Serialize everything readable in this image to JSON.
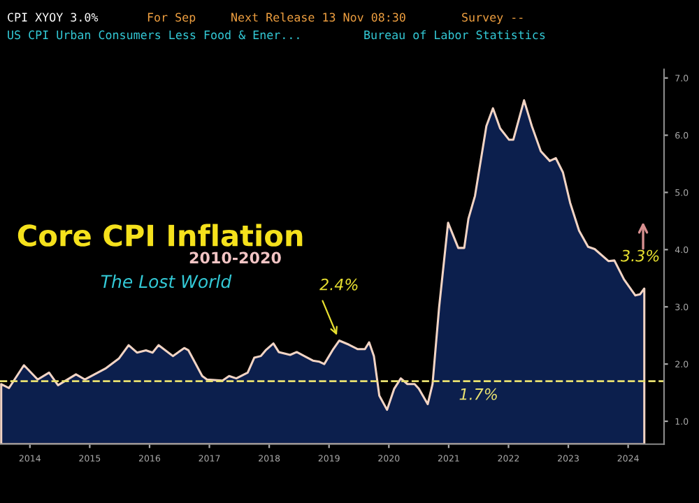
{
  "chart_data": {
    "type": "area",
    "title": "Core CPI Inflation",
    "subtitle": "The Lost World",
    "x": [
      2014.02,
      2014.15,
      2014.4,
      2014.63,
      2014.82,
      2014.97,
      2015.27,
      2015.42,
      2015.76,
      2015.99,
      2016.15,
      2016.29,
      2016.44,
      2016.55,
      2016.65,
      2016.89,
      2017.08,
      2017.15,
      2017.38,
      2017.46,
      2017.72,
      2017.83,
      2017.95,
      2018.14,
      2018.25,
      2018.36,
      2018.44,
      2018.57,
      2018.66,
      2018.85,
      2018.96,
      2019.23,
      2019.34,
      2019.42,
      2019.57,
      2019.67,
      2019.83,
      2019.98,
      2020.1,
      2020.17,
      2020.25,
      2020.34,
      2020.47,
      2020.59,
      2020.7,
      2020.81,
      2020.93,
      2021.0,
      2021.15,
      2021.23,
      2021.34,
      2021.49,
      2021.66,
      2021.76,
      2021.83,
      2021.94,
      2022.13,
      2022.24,
      2022.36,
      2022.51,
      2022.58,
      2022.76,
      2022.89,
      2023.04,
      2023.19,
      2023.29,
      2023.41,
      2023.53,
      2023.68,
      2023.83,
      2023.94,
      2024.17,
      2024.27,
      2024.43,
      2024.62,
      2024.7,
      2024.77
    ],
    "series": [
      {
        "color": "#0c1f4d",
        "values": [
          1.65,
          1.58,
          1.98,
          1.73,
          1.85,
          1.63,
          1.82,
          1.73,
          1.92,
          2.1,
          2.33,
          2.2,
          2.24,
          2.2,
          2.33,
          2.14,
          2.28,
          2.24,
          1.79,
          1.73,
          1.71,
          1.79,
          1.75,
          1.85,
          2.11,
          2.14,
          2.24,
          2.36,
          2.21,
          2.16,
          2.21,
          2.06,
          2.04,
          2.0,
          2.26,
          2.41,
          2.34,
          2.26,
          2.26,
          2.38,
          2.14,
          1.45,
          1.2,
          1.57,
          1.75,
          1.65,
          1.65,
          1.57,
          1.3,
          1.65,
          2.99,
          4.47,
          4.03,
          4.03,
          4.54,
          4.94,
          6.16,
          6.47,
          6.12,
          5.92,
          5.92,
          6.61,
          6.16,
          5.72,
          5.55,
          5.6,
          5.35,
          4.82,
          4.33,
          4.05,
          4.01,
          3.8,
          3.81,
          3.48,
          3.2,
          3.22,
          3.32
        ]
      }
    ],
    "xlim": [
      2014.0,
      2025.1
    ],
    "xticks": [
      {
        "value": 2014.5,
        "label": "2014"
      },
      {
        "value": 2015.5,
        "label": "2015"
      },
      {
        "value": 2016.5,
        "label": "2016"
      },
      {
        "value": 2017.5,
        "label": "2017"
      },
      {
        "value": 2018.5,
        "label": "2018"
      },
      {
        "value": 2019.5,
        "label": "2019"
      },
      {
        "value": 2020.5,
        "label": "2020"
      },
      {
        "value": 2021.5,
        "label": "2021"
      },
      {
        "value": 2022.5,
        "label": "2022"
      },
      {
        "value": 2023.5,
        "label": "2023"
      },
      {
        "value": 2024.5,
        "label": "2024"
      }
    ],
    "ylim": [
      0.6,
      7.15
    ],
    "yticks": [
      {
        "value": 1,
        "label": "1.0"
      },
      {
        "value": 2,
        "label": "2.0"
      },
      {
        "value": 3,
        "label": "3.0"
      },
      {
        "value": 4,
        "label": "4.0"
      },
      {
        "value": 5,
        "label": "5.0"
      },
      {
        "value": 6,
        "label": "6.0"
      },
      {
        "value": 7,
        "label": "7.0"
      }
    ],
    "ref_lines": [
      {
        "axis": "y",
        "value": 1.7,
        "label": "1.7%",
        "color": "#e8e070",
        "line_style": "dashed"
      }
    ],
    "annotations": [
      "CPI XYOY 3.0%",
      "For Sep",
      "Next Release 13 Nov 08:30",
      "Survey --",
      "US CPI Urban Consumers Less Food & Ener...",
      "Bureau of Labor Statistics",
      "2010-2020",
      {
        "text": "2.4%",
        "x": 2019.67,
        "y": 2.41
      },
      {
        "text": "3.3%",
        "x": 2024.77,
        "y": 3.32
      }
    ],
    "grid": false,
    "legend": false
  }
}
